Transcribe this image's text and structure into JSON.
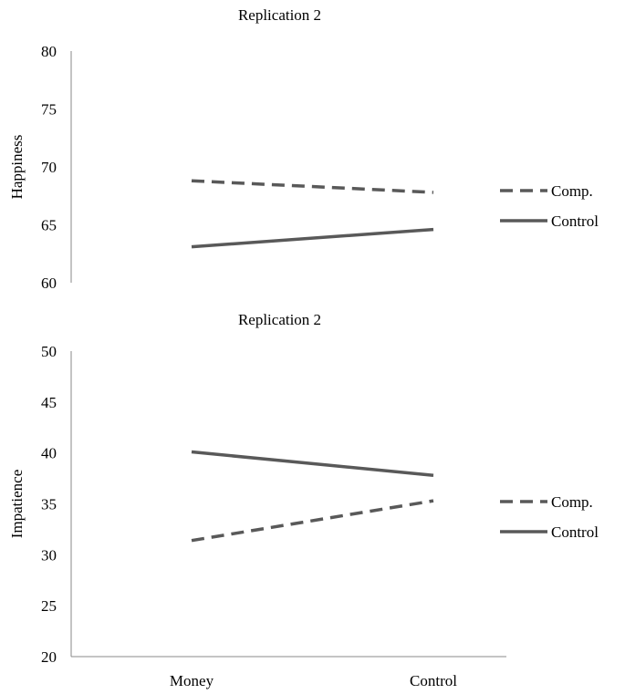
{
  "colors": {
    "series": "#595959",
    "axis": "#8a8a8a",
    "text": "#000000"
  },
  "chart_data": [
    {
      "type": "line",
      "title": "Replication 2",
      "ylabel": "Happiness",
      "xlabel": "",
      "categories": [
        "Money",
        "Control"
      ],
      "show_category_labels": false,
      "ylim": [
        60,
        80
      ],
      "yticks": [
        "60",
        "65",
        "70",
        "75",
        "80"
      ],
      "grid": false,
      "legend": "right",
      "series": [
        {
          "name": "Comp.",
          "style": "dashed",
          "values": [
            68.8,
            67.8
          ]
        },
        {
          "name": "Control",
          "style": "solid",
          "values": [
            63.1,
            64.6
          ]
        }
      ]
    },
    {
      "type": "line",
      "title": "Replication 2",
      "ylabel": "Impatience",
      "xlabel": "",
      "categories": [
        "Money",
        "Control"
      ],
      "show_category_labels": true,
      "ylim": [
        20,
        50
      ],
      "yticks": [
        "20",
        "25",
        "30",
        "35",
        "40",
        "45",
        "50"
      ],
      "grid": false,
      "legend": "right",
      "series": [
        {
          "name": "Comp.",
          "style": "dashed",
          "values": [
            31.4,
            35.3
          ]
        },
        {
          "name": "Control",
          "style": "solid",
          "values": [
            40.1,
            37.8
          ]
        }
      ]
    }
  ]
}
